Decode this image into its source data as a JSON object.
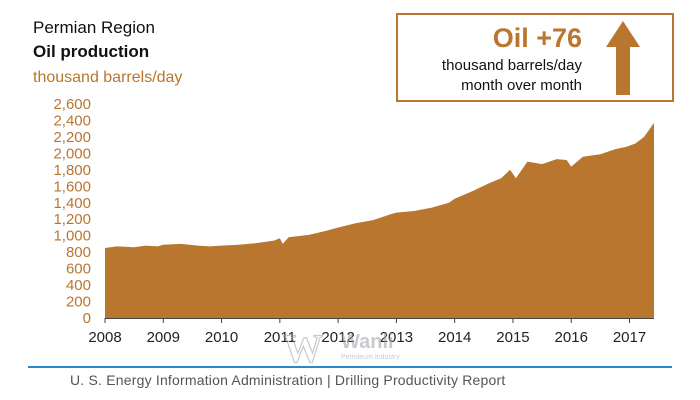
{
  "header": {
    "region": "Permian Region",
    "title": "Oil production",
    "unit": "thousand barrels/day"
  },
  "callout": {
    "headline": "Oil +76",
    "line1": "thousand barrels/day",
    "line2": "month over month",
    "icon": "up-arrow-icon"
  },
  "footer": {
    "source": "U. S. Energy Information Administration  |  Drilling Productivity Report"
  },
  "watermark": {
    "text": "Wanli",
    "subtext": "Petroleum Industry"
  },
  "colors": {
    "fill": "#b8762f",
    "accent_rule": "#2c86c9",
    "axis_text": "#b8762f"
  },
  "chart_data": {
    "type": "area",
    "title": "Oil production",
    "ylabel": "thousand barrels/day",
    "ylim": [
      0,
      2600
    ],
    "yticks": [
      "0",
      "200",
      "400",
      "600",
      "800",
      "1,000",
      "1,200",
      "1,400",
      "1,600",
      "1,800",
      "2,000",
      "2,200",
      "2,400",
      "2,600"
    ],
    "ytick_values": [
      0,
      200,
      400,
      600,
      800,
      1000,
      1200,
      1400,
      1600,
      1800,
      2000,
      2200,
      2400,
      2600
    ],
    "xlim": [
      2008,
      2017.42
    ],
    "xticks": [
      "2008",
      "2009",
      "2010",
      "2011",
      "2012",
      "2013",
      "2014",
      "2015",
      "2016",
      "2017"
    ],
    "xtick_values": [
      2008,
      2009,
      2010,
      2011,
      2012,
      2013,
      2014,
      2015,
      2016,
      2017
    ],
    "grid": false,
    "series": [
      {
        "points": [
          [
            2008.0,
            850
          ],
          [
            2008.2,
            870
          ],
          [
            2008.5,
            860
          ],
          [
            2008.7,
            880
          ],
          [
            2008.9,
            870
          ],
          [
            2009.0,
            890
          ],
          [
            2009.3,
            900
          ],
          [
            2009.6,
            880
          ],
          [
            2009.8,
            870
          ],
          [
            2010.0,
            880
          ],
          [
            2010.3,
            890
          ],
          [
            2010.6,
            910
          ],
          [
            2010.9,
            940
          ],
          [
            2011.0,
            970
          ],
          [
            2011.05,
            900
          ],
          [
            2011.15,
            980
          ],
          [
            2011.5,
            1010
          ],
          [
            2011.8,
            1060
          ],
          [
            2012.0,
            1100
          ],
          [
            2012.3,
            1150
          ],
          [
            2012.6,
            1190
          ],
          [
            2012.9,
            1260
          ],
          [
            2013.0,
            1280
          ],
          [
            2013.3,
            1300
          ],
          [
            2013.6,
            1340
          ],
          [
            2013.9,
            1400
          ],
          [
            2014.0,
            1450
          ],
          [
            2014.3,
            1540
          ],
          [
            2014.6,
            1640
          ],
          [
            2014.8,
            1700
          ],
          [
            2014.95,
            1800
          ],
          [
            2015.05,
            1700
          ],
          [
            2015.25,
            1900
          ],
          [
            2015.5,
            1870
          ],
          [
            2015.75,
            1930
          ],
          [
            2015.92,
            1920
          ],
          [
            2016.0,
            1840
          ],
          [
            2016.2,
            1960
          ],
          [
            2016.5,
            1990
          ],
          [
            2016.75,
            2050
          ],
          [
            2016.95,
            2080
          ],
          [
            2017.1,
            2120
          ],
          [
            2017.25,
            2200
          ],
          [
            2017.42,
            2370
          ]
        ]
      }
    ]
  }
}
